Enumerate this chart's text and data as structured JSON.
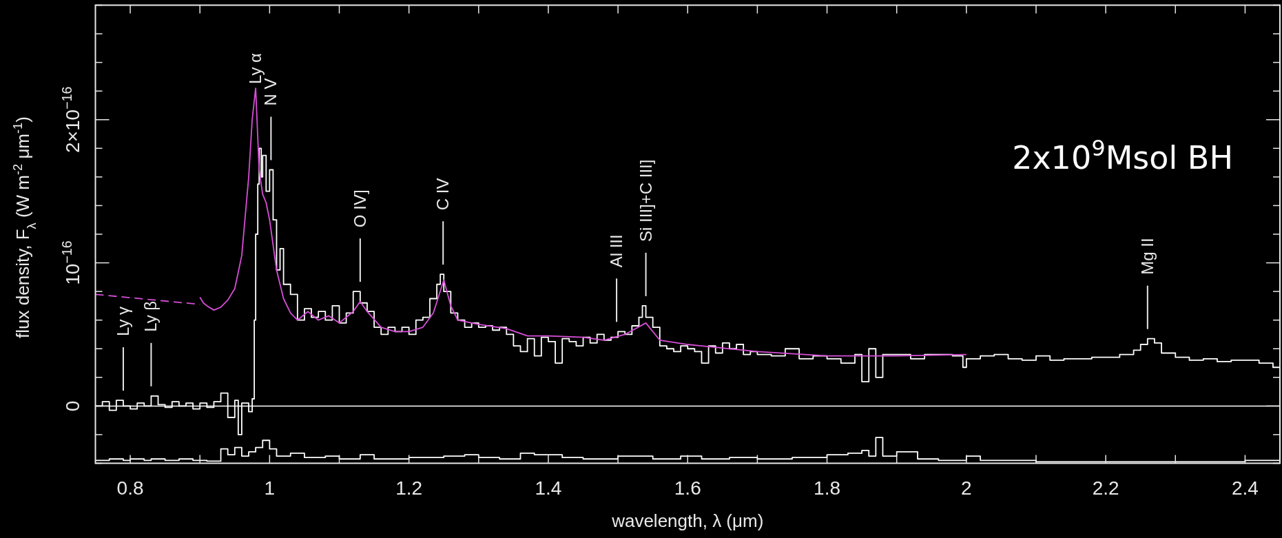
{
  "chart_data": {
    "type": "step",
    "xlabel": "wavelength, λ (μm)",
    "ylabel": "flux density, F$_{λ}$ (W m$^{-2}$ μm$^{-1}$)",
    "xlim": [
      0.75,
      2.45
    ],
    "ylim": [
      -4e-17,
      2.8e-16
    ],
    "xticks": [
      0.8,
      {
        "value": 0.9,
        "label": null
      },
      1,
      {
        "value": 1.1,
        "label": null
      },
      1.2,
      {
        "value": 1.3,
        "label": null
      },
      1.4,
      {
        "value": 1.5,
        "label": null
      },
      1.6,
      {
        "value": 1.7,
        "label": null
      },
      1.8,
      {
        "value": 1.9,
        "label": null
      },
      2,
      {
        "value": 2.1,
        "label": null
      },
      2.2,
      {
        "value": 2.3,
        "label": null
      },
      2.4
    ],
    "yticks": [
      {
        "value": -4e-17,
        "label": null
      },
      {
        "value": -2e-17,
        "label": null
      },
      0,
      {
        "value": 2e-17,
        "label": null
      },
      {
        "value": 4e-17,
        "label": null
      },
      {
        "value": 6e-17,
        "label": null
      },
      {
        "value": 8e-17,
        "label": null
      },
      {
        "value": 1e-16,
        "label": "10$^{−16}$"
      },
      {
        "value": 1.2e-16,
        "label": null
      },
      {
        "value": 1.4e-16,
        "label": null
      },
      {
        "value": 1.6e-16,
        "label": null
      },
      {
        "value": 1.8e-16,
        "label": null
      },
      {
        "value": 2e-16,
        "label": "2×10$^{−16}$"
      },
      {
        "value": 2.2e-16,
        "label": null
      },
      {
        "value": 2.4e-16,
        "label": null
      },
      {
        "value": 2.6e-16,
        "label": null
      },
      {
        "value": 2.8e-16,
        "label": null
      }
    ],
    "ref_lines": [
      {
        "axis": "y",
        "value": 0,
        "color": "#ffffff"
      }
    ],
    "annotations": [
      "2x10$^{9}$Msol BH",
      {
        "text": "Ly γ",
        "x": 0.79
      },
      {
        "text": "Ly β",
        "x": 0.83
      },
      "Ly α",
      {
        "text": "N V",
        "x": 1.002
      },
      {
        "text": "O IV]",
        "x": 1.13
      },
      {
        "text": "C IV",
        "x": 1.249
      },
      {
        "text": "Al III",
        "x": 1.498
      },
      {
        "text": "Si III]+C III]",
        "x": 1.54
      },
      {
        "text": "Mg II",
        "x": 2.26
      }
    ],
    "series": [
      {
        "color": "#ffffff",
        "x": [
          0.75,
          0.76,
          0.77,
          0.78,
          0.79,
          0.8,
          0.81,
          0.82,
          0.83,
          0.84,
          0.85,
          0.86,
          0.87,
          0.88,
          0.89,
          0.9,
          0.91,
          0.92,
          0.93,
          0.94,
          0.95,
          0.955,
          0.96,
          0.97,
          0.975,
          0.978,
          0.98,
          0.983,
          0.985,
          0.988,
          0.99,
          0.995,
          1,
          1.005,
          1.01,
          1.015,
          1.02,
          1.03,
          1.04,
          1.05,
          1.06,
          1.07,
          1.08,
          1.09,
          1.1,
          1.11,
          1.12,
          1.13,
          1.14,
          1.15,
          1.16,
          1.17,
          1.18,
          1.19,
          1.2,
          1.21,
          1.22,
          1.23,
          1.24,
          1.245,
          1.25,
          1.26,
          1.27,
          1.28,
          1.29,
          1.3,
          1.31,
          1.32,
          1.33,
          1.34,
          1.35,
          1.36,
          1.37,
          1.38,
          1.39,
          1.4,
          1.41,
          1.42,
          1.43,
          1.44,
          1.45,
          1.46,
          1.47,
          1.48,
          1.49,
          1.5,
          1.51,
          1.52,
          1.53,
          1.535,
          1.54,
          1.55,
          1.56,
          1.57,
          1.58,
          1.59,
          1.6,
          1.61,
          1.62,
          1.63,
          1.64,
          1.65,
          1.66,
          1.67,
          1.68,
          1.69,
          1.7,
          1.72,
          1.74,
          1.76,
          1.78,
          1.8,
          1.82,
          1.84,
          1.85,
          1.86,
          1.87,
          1.88,
          1.9,
          1.92,
          1.94,
          1.96,
          1.98,
          1.995,
          2,
          2.02,
          2.04,
          2.06,
          2.08,
          2.1,
          2.12,
          2.14,
          2.16,
          2.18,
          2.2,
          2.22,
          2.24,
          2.25,
          2.26,
          2.27,
          2.28,
          2.3,
          2.32,
          2.34,
          2.36,
          2.38,
          2.4,
          2.42,
          2.44,
          2.45
        ],
        "values": [
          0,
          3e-18,
          -3e-18,
          4e-18,
          0,
          -2e-18,
          2e-18,
          0,
          7e-18,
          1e-18,
          -1e-18,
          3e-18,
          0,
          2e-18,
          -2e-18,
          2e-18,
          -1e-18,
          3e-18,
          9e-18,
          -8e-18,
          4e-18,
          -2e-17,
          2e-18,
          -4e-18,
          5e-18,
          6e-17,
          1.2e-16,
          1.55e-16,
          1.8e-16,
          1.6e-16,
          1.75e-16,
          1.5e-16,
          1.65e-16,
          1.3e-16,
          9.5e-17,
          1.1e-16,
          8.5e-17,
          7.8e-17,
          6e-17,
          6.8e-17,
          6.2e-17,
          6.6e-17,
          6e-17,
          7e-17,
          5.8e-17,
          6.5e-17,
          8e-17,
          7.2e-17,
          6.6e-17,
          5.5e-17,
          5e-17,
          5.5e-17,
          5.2e-17,
          5.5e-17,
          5e-17,
          6e-17,
          6.2e-17,
          7.5e-17,
          8.5e-17,
          9.2e-17,
          8e-17,
          6.5e-17,
          6e-17,
          5.5e-17,
          5.8e-17,
          5.5e-17,
          5.6e-17,
          5.3e-17,
          5.5e-17,
          5e-17,
          4.2e-17,
          3.8e-17,
          4.7e-17,
          3.5e-17,
          4.8e-17,
          4.5e-17,
          3e-17,
          4.7e-17,
          4.5e-17,
          4.2e-17,
          4.8e-17,
          4.4e-17,
          5e-17,
          4.6e-17,
          4.8e-17,
          5.2e-17,
          5e-17,
          5.6e-17,
          6.2e-17,
          7e-17,
          6.2e-17,
          5.5e-17,
          4.2e-17,
          4e-17,
          3.8e-17,
          4.2e-17,
          4e-17,
          3.8e-17,
          3e-17,
          4.2e-17,
          3.7e-17,
          4.4e-17,
          4e-17,
          4.3e-17,
          3.6e-17,
          3.8e-17,
          3.6e-17,
          3.5e-17,
          4e-17,
          3.3e-17,
          3.5e-17,
          3.3e-17,
          3e-17,
          3.6e-17,
          1.7e-17,
          4e-17,
          2e-17,
          3.6e-17,
          3.6e-17,
          3.3e-17,
          3.6e-17,
          3.6e-17,
          3.5e-17,
          2.7e-17,
          3.3e-17,
          3.5e-17,
          3.6e-17,
          3.3e-17,
          3.2e-17,
          3.5e-17,
          3.2e-17,
          3.3e-17,
          3.3e-17,
          3.4e-17,
          3.4e-17,
          3.6e-17,
          3.9e-17,
          4.3e-17,
          4.7e-17,
          4.4e-17,
          3.7e-17,
          3.4e-17,
          3.2e-17,
          3.3e-17,
          3.1e-17,
          3.2e-17,
          3.2e-17,
          3e-17,
          2.7e-17,
          2.7e-17
        ]
      },
      {
        "type": "line",
        "color": "#d84ed8",
        "line_style": "dashed",
        "x": [
          0.75,
          0.9
        ],
        "values": [
          7.8e-17,
          7.1e-17
        ]
      },
      {
        "type": "line",
        "color": "#d84ed8",
        "x": [
          0.9,
          0.905,
          0.91,
          0.92,
          0.93,
          0.94,
          0.95,
          0.96,
          0.97,
          0.975,
          0.98,
          0.985,
          0.99,
          0.995,
          1,
          1.01,
          1.02,
          1.03,
          1.04,
          1.055,
          1.07,
          1.085,
          1.1,
          1.12,
          1.13,
          1.14,
          1.16,
          1.18,
          1.2,
          1.22,
          1.235,
          1.25,
          1.26,
          1.27,
          1.3,
          1.34,
          1.37,
          1.4,
          1.45,
          1.48,
          1.51,
          1.54,
          1.56,
          1.6,
          1.7,
          1.8,
          1.9,
          2
        ],
        "values": [
          7.6e-17,
          7.2e-17,
          7e-17,
          6.7e-17,
          6.9e-17,
          7.4e-17,
          8.2e-17,
          1.05e-16,
          1.6e-16,
          2e-16,
          2.22e-16,
          1.65e-16,
          1.48e-16,
          1.42e-16,
          1.3e-16,
          9.5e-17,
          7.5e-17,
          6.5e-17,
          6e-17,
          6.6e-17,
          6e-17,
          6.3e-17,
          5.8e-17,
          6.6e-17,
          7.3e-17,
          6.6e-17,
          5.5e-17,
          5.2e-17,
          5.2e-17,
          5.5e-17,
          6.5e-17,
          8.8e-17,
          7e-17,
          6e-17,
          5.7e-17,
          5.4e-17,
          4.9e-17,
          4.9e-17,
          4.8e-17,
          4.6e-17,
          5e-17,
          5.8e-17,
          4.6e-17,
          4.3e-17,
          3.8e-17,
          3.5e-17,
          3.5e-17,
          3.6e-17
        ]
      },
      {
        "color": "#ffffff",
        "x": [
          0.75,
          0.77,
          0.79,
          0.8,
          0.82,
          0.83,
          0.85,
          0.87,
          0.89,
          0.91,
          0.93,
          0.94,
          0.95,
          0.96,
          0.97,
          0.98,
          0.99,
          1,
          1.01,
          1.03,
          1.05,
          1.08,
          1.1,
          1.13,
          1.15,
          1.18,
          1.2,
          1.25,
          1.28,
          1.3,
          1.33,
          1.36,
          1.38,
          1.4,
          1.42,
          1.45,
          1.5,
          1.55,
          1.59,
          1.62,
          1.66,
          1.7,
          1.75,
          1.8,
          1.83,
          1.85,
          1.86,
          1.87,
          1.88,
          1.9,
          1.93,
          1.96,
          2,
          2.02,
          2.06,
          2.1,
          2.2,
          2.3,
          2.4,
          2.45
        ],
        "values": [
          -3.8e-17,
          -3.7e-17,
          -3.8e-17,
          -3.7e-17,
          -3.8e-17,
          -3.7e-17,
          -3.8e-17,
          -3.7e-17,
          -3.8e-17,
          -3.85e-17,
          -3e-17,
          -3.4e-17,
          -2.9e-17,
          -3.5e-17,
          -3.2e-17,
          -2.9e-17,
          -2.4e-17,
          -3e-17,
          -3.5e-17,
          -3.3e-17,
          -3.6e-17,
          -3.5e-17,
          -3.7e-17,
          -3.4e-17,
          -3.7e-17,
          -3.7e-17,
          -3.6e-17,
          -3.5e-17,
          -3.4e-17,
          -3.6e-17,
          -3.7e-17,
          -3.3e-17,
          -3.4e-17,
          -3.4e-17,
          -3.6e-17,
          -3.7e-17,
          -3.5e-17,
          -3.7e-17,
          -3.5e-17,
          -3.7e-17,
          -3.6e-17,
          -3.7e-17,
          -3.6e-17,
          -3.4e-17,
          -3.3e-17,
          -3.1e-17,
          -3.5e-17,
          -2.2e-17,
          -3.5e-17,
          -3.2e-17,
          -3.7e-17,
          -3.8e-17,
          -3.5e-17,
          -3.8e-17,
          -3.8e-17,
          -3.9e-17,
          -3.9e-17,
          -3.9e-17,
          -3.8e-17,
          -3.8e-17
        ]
      }
    ]
  }
}
